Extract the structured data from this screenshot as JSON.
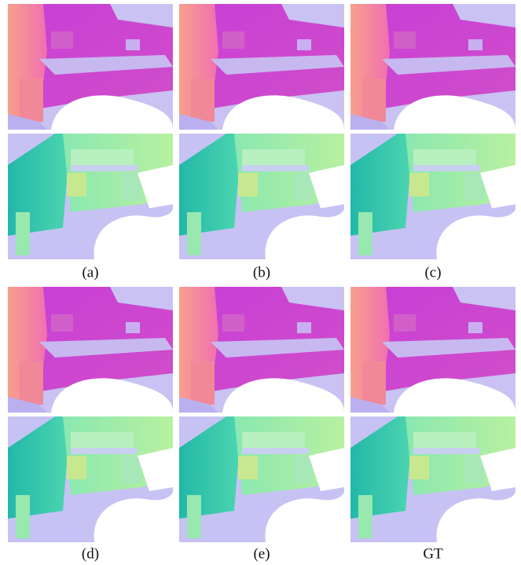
{
  "captions": [
    "(a)",
    "(b)",
    "(c)",
    "(d)",
    "(e)",
    "GT"
  ]
}
